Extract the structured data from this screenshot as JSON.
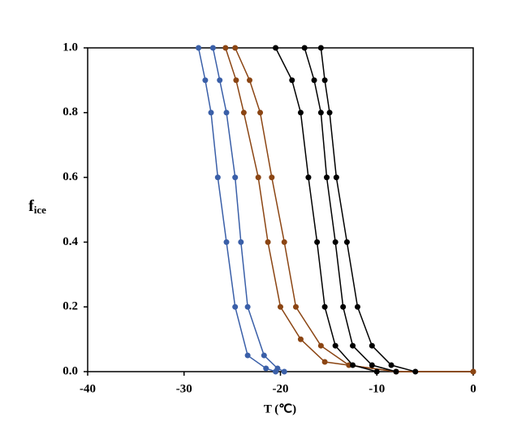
{
  "chart_data": {
    "type": "scatter",
    "xlabel": "T (℃)",
    "ylabel": "f",
    "ylabel_sub": "ice",
    "xlim": [
      -40,
      0
    ],
    "ylim": [
      0,
      1
    ],
    "xticks": [
      -40,
      -30,
      -20,
      -10,
      0
    ],
    "yticks": [
      {
        "value": 0,
        "label": "0.0"
      },
      {
        "value": 0.2,
        "label": "0.2"
      },
      {
        "value": 0.4,
        "label": "0.4"
      },
      {
        "value": 0.6,
        "label": "0.6"
      },
      {
        "value": 0.8,
        "label": "0.8"
      },
      {
        "value": 1,
        "label": "1.0"
      }
    ],
    "series": [
      {
        "color": "#3a5fa8",
        "x": [
          -28.5,
          -27.8,
          -27.2,
          -26.5,
          -25.6,
          -24.7,
          -23.4,
          -21.5,
          -20.5
        ],
        "values": [
          1,
          0.9,
          0.8,
          0.6,
          0.4,
          0.2,
          0.05,
          0.01,
          0
        ]
      },
      {
        "color": "#3a5fa8",
        "x": [
          -27,
          -26.3,
          -25.6,
          -24.7,
          -24.1,
          -23.4,
          -21.7,
          -20.3,
          -19.6
        ],
        "values": [
          1,
          0.9,
          0.8,
          0.6,
          0.4,
          0.2,
          0.05,
          0.01,
          0
        ]
      },
      {
        "color": "#8b4513",
        "x": [
          -25.7,
          -24.6,
          -23.8,
          -22.3,
          -21.3,
          -20,
          -17.9,
          -15.4,
          -8,
          0
        ],
        "values": [
          1,
          0.9,
          0.8,
          0.6,
          0.4,
          0.2,
          0.1,
          0.03,
          0,
          0
        ]
      },
      {
        "color": "#8b4513",
        "x": [
          -24.7,
          -23.2,
          -22.1,
          -20.9,
          -19.6,
          -18.4,
          -15.8,
          -12.9,
          -8,
          0
        ],
        "values": [
          1,
          0.9,
          0.8,
          0.6,
          0.4,
          0.2,
          0.08,
          0.02,
          0,
          0
        ]
      },
      {
        "color": "#000000",
        "x": [
          -20.5,
          -18.8,
          -17.9,
          -17.1,
          -16.2,
          -15.4,
          -14.3,
          -12.5,
          -10
        ],
        "values": [
          1,
          0.9,
          0.8,
          0.6,
          0.4,
          0.2,
          0.08,
          0.02,
          0
        ]
      },
      {
        "color": "#000000",
        "x": [
          -17.5,
          -16.5,
          -15.8,
          -15.2,
          -14.3,
          -13.5,
          -12.5,
          -10.5,
          -8
        ],
        "values": [
          1,
          0.9,
          0.8,
          0.6,
          0.4,
          0.2,
          0.08,
          0.02,
          0
        ]
      },
      {
        "color": "#000000",
        "x": [
          -15.8,
          -15.4,
          -14.9,
          -14.2,
          -13.1,
          -12,
          -10.5,
          -8.5,
          -6
        ],
        "values": [
          1,
          0.9,
          0.8,
          0.6,
          0.4,
          0.2,
          0.08,
          0.02,
          0
        ]
      }
    ]
  }
}
